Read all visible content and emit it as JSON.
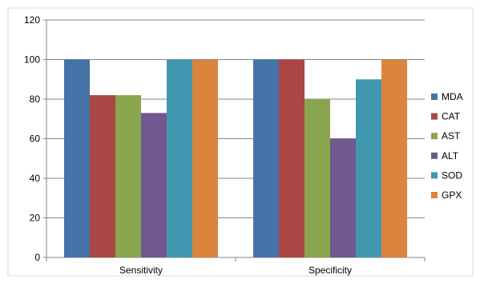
{
  "chart_data": {
    "type": "bar",
    "categories": [
      "Sensitivity",
      "Specificity"
    ],
    "series": [
      {
        "name": "MDA",
        "values": [
          100,
          100
        ],
        "color": "#4572A7"
      },
      {
        "name": "CAT",
        "values": [
          82,
          100
        ],
        "color": "#AA4643"
      },
      {
        "name": "AST",
        "values": [
          82,
          80
        ],
        "color": "#89A54E"
      },
      {
        "name": "ALT",
        "values": [
          73,
          60
        ],
        "color": "#71588F"
      },
      {
        "name": "SOD",
        "values": [
          100,
          90
        ],
        "color": "#4198AF"
      },
      {
        "name": "GPX",
        "values": [
          100,
          100
        ],
        "color": "#DB843D"
      }
    ],
    "ylim": [
      0,
      120
    ],
    "yticks": [
      0,
      20,
      40,
      60,
      80,
      100,
      120
    ],
    "grid": true,
    "legend_position": "right"
  }
}
